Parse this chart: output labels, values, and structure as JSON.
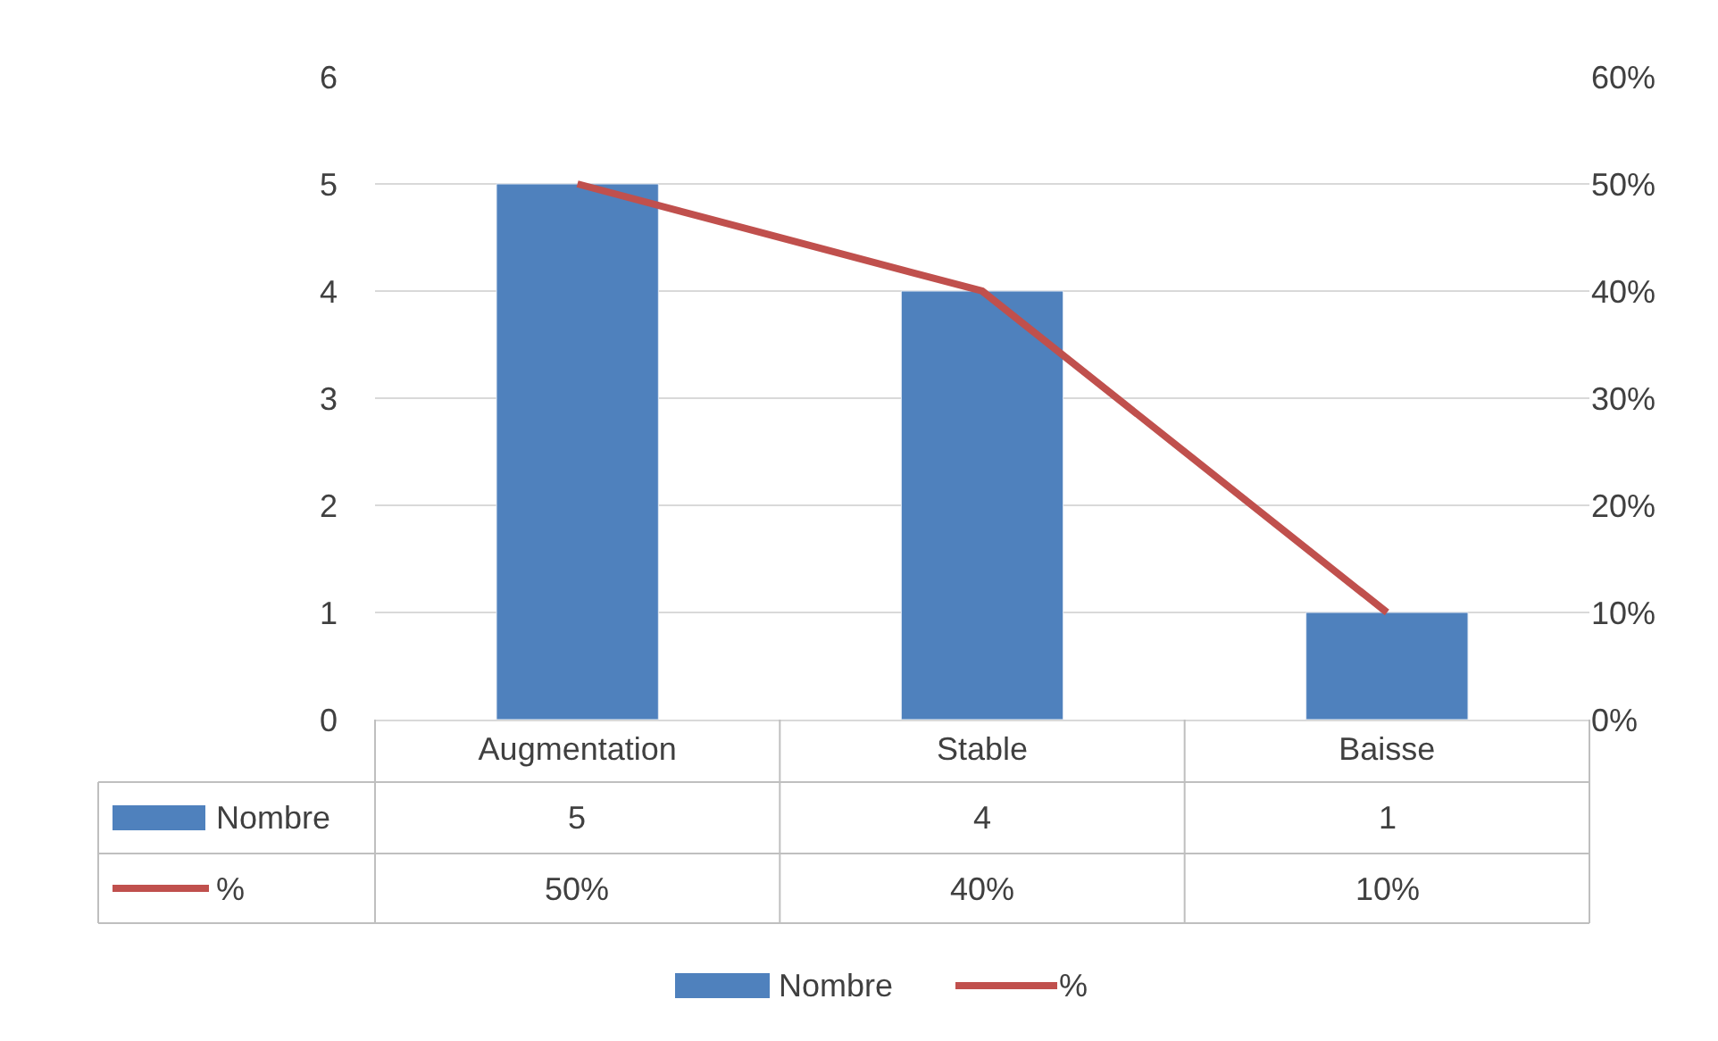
{
  "chart_data": {
    "type": "bar",
    "categories": [
      "Augmentation",
      "Stable",
      "Baisse"
    ],
    "series": [
      {
        "name": "Nombre",
        "color": "#4f81bd",
        "values": [
          5,
          4,
          1
        ],
        "value_labels": [
          "5",
          "4",
          "1"
        ]
      },
      {
        "name": "%",
        "type": "line",
        "axis": "y2",
        "color": "#c0504d",
        "values": [
          50,
          40,
          10
        ],
        "value_labels": [
          "50%",
          "40%",
          "10%"
        ]
      }
    ],
    "ylim": [
      0,
      6
    ],
    "yticks": [
      0,
      1,
      2,
      3,
      4,
      5,
      6
    ],
    "y2lim": [
      0,
      60
    ],
    "y2ticks": [
      {
        "value": 0,
        "label": "0%"
      },
      {
        "value": 10,
        "label": "10%"
      },
      {
        "value": 20,
        "label": "20%"
      },
      {
        "value": 30,
        "label": "30%"
      },
      {
        "value": 40,
        "label": "40%"
      },
      {
        "value": 50,
        "label": "50%"
      },
      {
        "value": 60,
        "label": "60%"
      }
    ],
    "grid": "y",
    "legend": "bottom"
  }
}
